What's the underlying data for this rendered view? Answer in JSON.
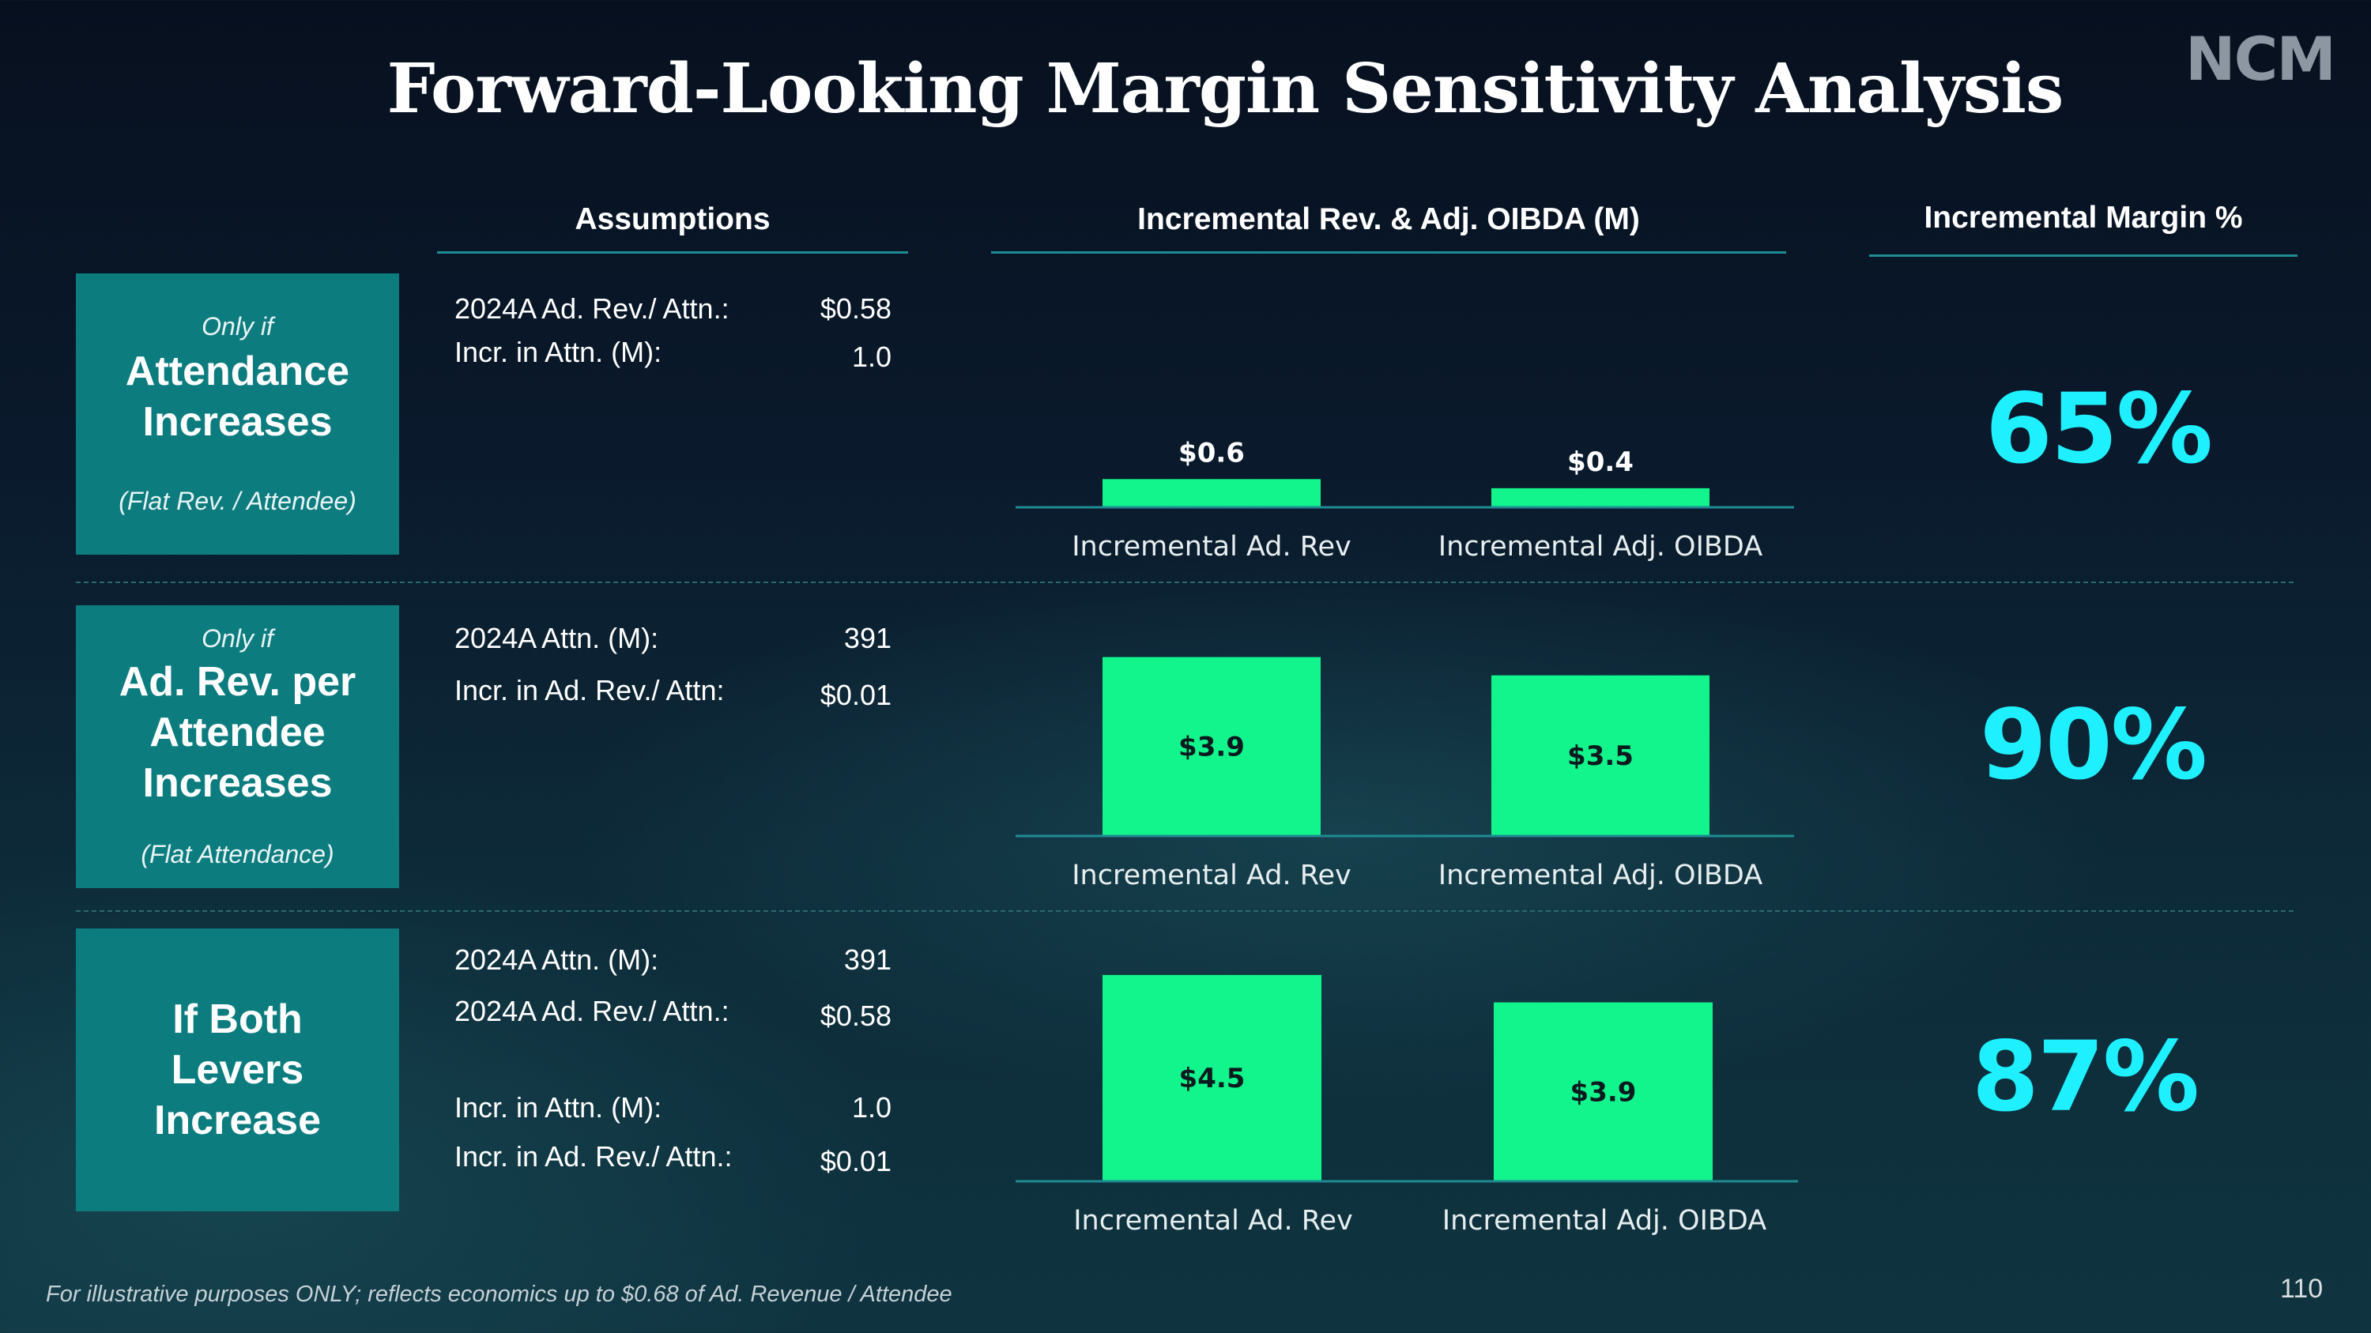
{
  "title": "Forward-Looking Margin Sensitivity Analysis",
  "logo": "NCM",
  "headers": {
    "assumptions": "Assumptions",
    "chart": "Incremental Rev. & Adj. OIBDA (M)",
    "margin": "Incremental Margin %"
  },
  "levers": [
    {
      "prefix": "Only if",
      "main": [
        "Attendance",
        "Increases"
      ],
      "sub": "(Flat Rev. / Attendee)"
    },
    {
      "prefix": "Only if",
      "main": [
        "Ad. Rev. per",
        "Attendee",
        "Increases"
      ],
      "sub": "(Flat Attendance)"
    },
    {
      "prefix": "",
      "main": [
        "If Both",
        "Levers",
        "Increase"
      ],
      "sub": ""
    }
  ],
  "assumptions": [
    [
      {
        "label": "2024A Ad. Rev./ Attn.:",
        "value": "$0.58"
      },
      {
        "label": "Incr. in Attn. (M):",
        "value": "1.0"
      }
    ],
    [
      {
        "label": "2024A Attn. (M):",
        "value": "391"
      },
      {
        "label": "Incr. in Ad. Rev./ Attn:",
        "value": "$0.01"
      }
    ],
    [
      {
        "label": "2024A Attn. (M):",
        "value": "391"
      },
      {
        "label": "2024A Ad. Rev./ Attn.:",
        "value": "$0.58"
      },
      {
        "label": "Incr. in Attn. (M):",
        "value": "1.0"
      },
      {
        "label": "Incr. in Ad. Rev./ Attn.:",
        "value": "$0.01"
      }
    ]
  ],
  "chart_data": [
    {
      "type": "bar",
      "categories": [
        "Incremental Ad. Rev",
        "Incremental Adj. OIBDA"
      ],
      "values": [
        0.6,
        0.4
      ],
      "labels": [
        "$0.6",
        "$0.4"
      ]
    },
    {
      "type": "bar",
      "categories": [
        "Incremental Ad. Rev",
        "Incremental Adj. OIBDA"
      ],
      "values": [
        3.9,
        3.5
      ],
      "labels": [
        "$3.9",
        "$3.5"
      ]
    },
    {
      "type": "bar",
      "categories": [
        "Incremental Ad. Rev",
        "Incremental Adj. OIBDA"
      ],
      "values": [
        4.5,
        3.9
      ],
      "labels": [
        "$4.5",
        "$3.9"
      ]
    }
  ],
  "margins": [
    "65%",
    "90%",
    "87%"
  ],
  "colors": {
    "bar": "#12f58c",
    "margin": "#1ef0ff",
    "lever": "#0d7c7f",
    "rule": "#1e8c93"
  },
  "footnote": "For illustrative purposes ONLY; reflects economics up to $0.68 of Ad. Revenue / Attendee",
  "page_number": "110"
}
